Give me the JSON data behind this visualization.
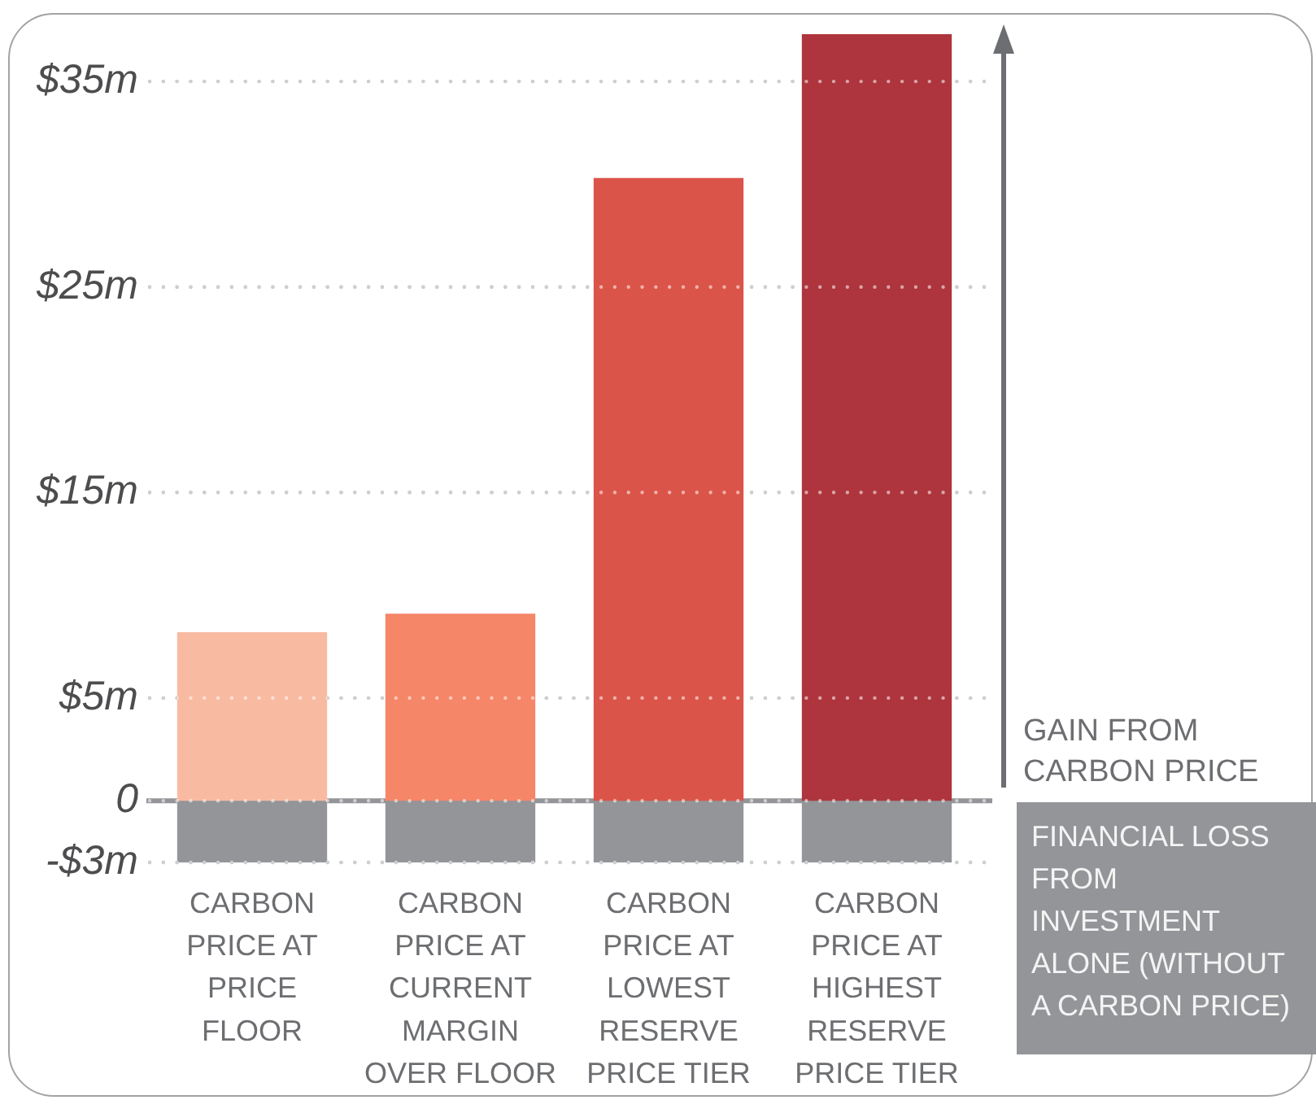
{
  "chart_data": {
    "type": "bar",
    "stacked": true,
    "categories": [
      "CARBON PRICE AT PRICE FLOOR",
      "CARBON PRICE AT CURRENT MARGIN OVER FLOOR",
      "CARBON PRICE AT LOWEST RESERVE PRICE TIER",
      "CARBON PRICE AT HIGHEST RESERVE PRICE TIER"
    ],
    "series": [
      {
        "name": "GAIN FROM CARBON PRICE",
        "colors": [
          "#f9baa2",
          "#f58668",
          "#db5449",
          "#ae353d"
        ],
        "values": [
          8.2,
          9.1,
          30.3,
          37.3
        ]
      },
      {
        "name": "FINANCIAL LOSS FROM INVESTMENT ALONE (WITHOUT A CARBON PRICE)",
        "color": "#939598",
        "values": [
          -3,
          -3,
          -3,
          -3
        ]
      }
    ],
    "ylim": [
      -3,
      37.3
    ],
    "yticks": [
      {
        "value": -3,
        "label": "-$3m"
      },
      0,
      {
        "value": 5,
        "label": "$5m"
      },
      {
        "value": 15,
        "label": "$15m"
      },
      {
        "value": 25,
        "label": "$25m"
      },
      {
        "value": 35,
        "label": "$35m"
      }
    ],
    "grid": "y",
    "legend": "right",
    "ref_lines": [
      {
        "axis": "y",
        "value": 0,
        "color": "#939598"
      }
    ]
  }
}
